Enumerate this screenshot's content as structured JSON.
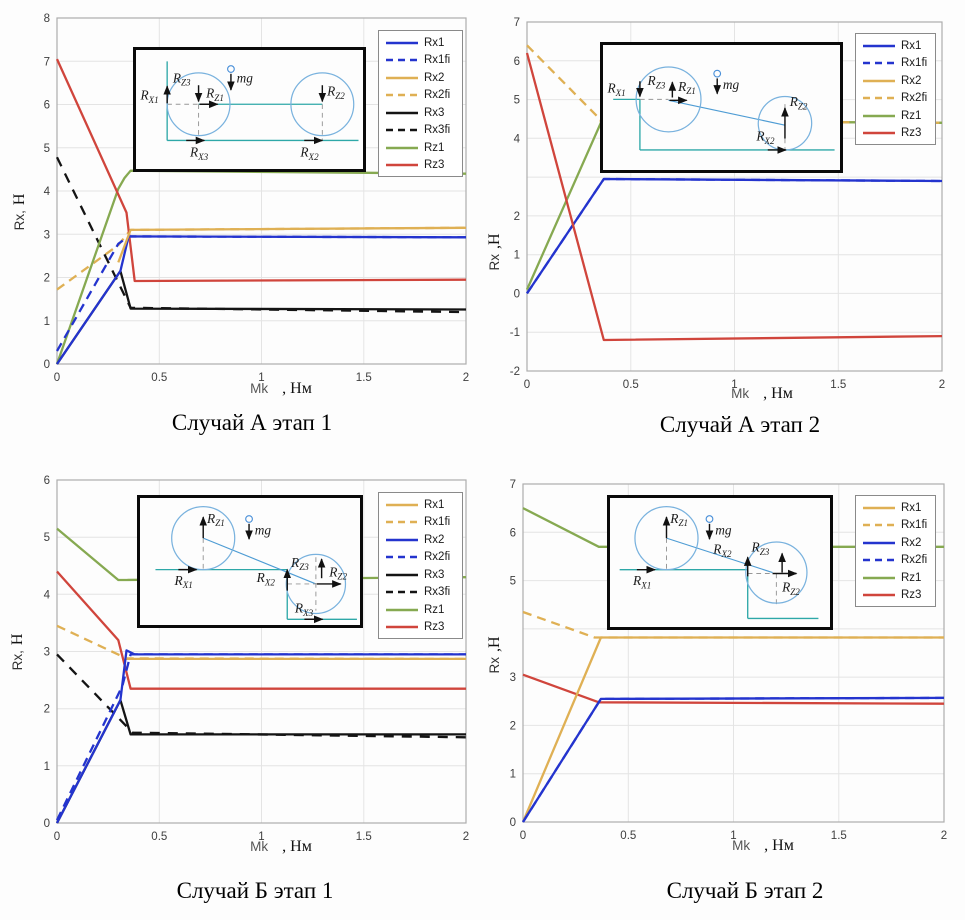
{
  "colors": {
    "blue": "#2434ce",
    "yellow": "#dfb054",
    "black": "#141414",
    "green": "#86a951",
    "red": "#d0453c"
  },
  "chart_data": [
    {
      "type": "line",
      "title": "Случай А этап 1",
      "ylabel_a": "Rx,",
      "ylabel_b": "Н",
      "xlabel_a": "Mk",
      "xlabel_b": ", Нм",
      "xlim": [
        0,
        2
      ],
      "ylim": [
        0,
        8
      ],
      "grid": true,
      "legend_position": "top-right",
      "xticks": [
        {
          "v": 0,
          "t": "0"
        },
        {
          "v": 0.5,
          "t": "0.5"
        },
        {
          "v": 1,
          "t": "1"
        },
        {
          "v": 1.5,
          "t": "1.5"
        },
        {
          "v": 2,
          "t": "2"
        }
      ],
      "yticks": [
        {
          "v": 0,
          "t": "0"
        },
        {
          "v": 1,
          "t": "1"
        },
        {
          "v": 2,
          "t": "2"
        },
        {
          "v": 3,
          "t": "3"
        },
        {
          "v": 4,
          "t": "4"
        },
        {
          "v": 5,
          "t": "5"
        },
        {
          "v": 6,
          "t": "6"
        },
        {
          "v": 7,
          "t": "7"
        },
        {
          "v": 8,
          "t": "8"
        }
      ],
      "legend": [
        {
          "label": "Rx1",
          "color": "blue",
          "dash": ""
        },
        {
          "label": "Rx1fi",
          "color": "blue",
          "dash": "7 5"
        },
        {
          "label": "Rx2",
          "color": "yellow",
          "dash": ""
        },
        {
          "label": "Rx2fi",
          "color": "yellow",
          "dash": "7 5"
        },
        {
          "label": "Rx3",
          "color": "black",
          "dash": ""
        },
        {
          "label": "Rx3fi",
          "color": "black",
          "dash": "7 5"
        },
        {
          "label": "Rz1",
          "color": "green",
          "dash": ""
        },
        {
          "label": "Rz3",
          "color": "red",
          "dash": ""
        }
      ],
      "series": [
        {
          "name": "Rx2fi",
          "color": "yellow",
          "dash": "9 6",
          "points": [
            [
              0,
              1.72
            ],
            [
              0.3,
              2.75
            ],
            [
              0.36,
              3.1
            ],
            [
              2,
              3.15
            ]
          ]
        },
        {
          "name": "Rx3fi",
          "color": "black",
          "dash": "10 8",
          "points": [
            [
              0,
              4.78
            ],
            [
              0.36,
              1.3
            ],
            [
              2,
              1.2
            ]
          ]
        },
        {
          "name": "Rz1",
          "color": "green",
          "dash": "",
          "points": [
            [
              0,
              0
            ],
            [
              0.3,
              4.05
            ],
            [
              0.33,
              4.3
            ],
            [
              0.36,
              4.47
            ],
            [
              2,
              4.4
            ]
          ]
        },
        {
          "name": "Rz3",
          "color": "red",
          "dash": "",
          "points": [
            [
              0,
              7.05
            ],
            [
              0.34,
              3.5
            ],
            [
              0.38,
              1.92
            ],
            [
              2,
              1.95
            ]
          ]
        },
        {
          "name": "Rx3",
          "color": "black",
          "dash": "",
          "points": [
            [
              0,
              0
            ],
            [
              0.31,
              2.15
            ],
            [
              0.36,
              1.28
            ],
            [
              2,
              1.26
            ]
          ]
        },
        {
          "name": "Rx1fi",
          "color": "blue",
          "dash": "9 6",
          "points": [
            [
              0,
              0.3
            ],
            [
              0.3,
              2.78
            ],
            [
              0.35,
              2.95
            ],
            [
              2,
              2.93
            ]
          ]
        },
        {
          "name": "Rx1",
          "color": "blue",
          "dash": "",
          "points": [
            [
              0,
              0
            ],
            [
              0.31,
              2.15
            ],
            [
              0.35,
              2.95
            ],
            [
              2,
              2.93
            ]
          ]
        },
        {
          "name": "Rx2",
          "color": "yellow",
          "dash": "",
          "points": [
            [
              0.3,
              2.35
            ],
            [
              0.36,
              3.1
            ],
            [
              2,
              3.15
            ]
          ]
        }
      ],
      "inset": {
        "rx1": {
          "m": "R",
          "s": "X1"
        },
        "rz3": {
          "m": "R",
          "s": "Z3"
        },
        "rz1": {
          "m": "R",
          "s": "Z1"
        },
        "mg": "mg",
        "rz2": {
          "m": "R",
          "s": "Z2"
        },
        "rx3": {
          "m": "R",
          "s": "X3"
        },
        "rx2": {
          "m": "R",
          "s": "X2"
        }
      }
    },
    {
      "type": "line",
      "title": "Случай А этап 2",
      "ylabel_a": "Rx",
      "ylabel_b": ",Н",
      "xlabel_a": "Mk",
      "xlabel_b": ", Нм",
      "xlim": [
        0,
        2
      ],
      "ylim": [
        -2,
        7
      ],
      "grid": true,
      "legend_position": "top-right",
      "xticks": [
        {
          "v": 0,
          "t": "0"
        },
        {
          "v": 0.5,
          "t": "0.5"
        },
        {
          "v": 1,
          "t": "1"
        },
        {
          "v": 1.5,
          "t": "1.5"
        },
        {
          "v": 2,
          "t": "2"
        }
      ],
      "yticks": [
        {
          "v": -2,
          "t": "-2"
        },
        {
          "v": -1,
          "t": "-1"
        },
        {
          "v": 0,
          "t": "0"
        },
        {
          "v": 1,
          "t": "1"
        },
        {
          "v": 2,
          "t": "2"
        },
        {
          "v": 3,
          "t": ""
        },
        {
          "v": 4,
          "t": "4"
        },
        {
          "v": 5,
          "t": "5"
        },
        {
          "v": 6,
          "t": "6"
        },
        {
          "v": 7,
          "t": "7"
        }
      ],
      "legend": [
        {
          "label": "Rx1",
          "color": "blue",
          "dash": ""
        },
        {
          "label": "Rx1fi",
          "color": "blue",
          "dash": "7 5"
        },
        {
          "label": "Rx2",
          "color": "yellow",
          "dash": ""
        },
        {
          "label": "Rx2fi",
          "color": "yellow",
          "dash": "7 5"
        },
        {
          "label": "Rz1",
          "color": "green",
          "dash": ""
        },
        {
          "label": "Rz3",
          "color": "red",
          "dash": ""
        }
      ],
      "series": [
        {
          "name": "Rx2",
          "color": "yellow",
          "dash": "",
          "points": [
            [
              0.35,
              4.45
            ],
            [
              2,
              4.4
            ]
          ]
        },
        {
          "name": "Rz1",
          "color": "green",
          "dash": "",
          "points": [
            [
              0,
              0.1
            ],
            [
              0.36,
              4.45
            ],
            [
              2,
              4.4
            ]
          ]
        },
        {
          "name": "Rx2fi",
          "color": "yellow",
          "dash": "9 6",
          "points": [
            [
              0,
              6.4
            ],
            [
              0.36,
              4.45
            ],
            [
              2,
              4.4
            ]
          ]
        },
        {
          "name": "Rx1",
          "color": "blue",
          "dash": "",
          "points": [
            [
              0,
              0
            ],
            [
              0.37,
              2.95
            ],
            [
              2,
              2.9
            ]
          ]
        },
        {
          "name": "Rx1fi",
          "color": "blue",
          "dash": "9 6",
          "points": [
            [
              0,
              0
            ],
            [
              0.37,
              2.95
            ],
            [
              2,
              2.9
            ]
          ]
        },
        {
          "name": "Rz3",
          "color": "red",
          "dash": "",
          "points": [
            [
              0,
              6.2
            ],
            [
              0.37,
              -1.2
            ],
            [
              2,
              -1.1
            ]
          ]
        }
      ],
      "inset": {
        "rx1": {
          "m": "R",
          "s": "X1"
        },
        "rz3": {
          "m": "R",
          "s": "Z3"
        },
        "rz1": {
          "m": "R",
          "s": "Z1"
        },
        "mg": "mg",
        "rz2": {
          "m": "R",
          "s": "Z2"
        },
        "rx2": {
          "m": "R",
          "s": "X2"
        }
      }
    },
    {
      "type": "line",
      "title": "Случай Б этап 1",
      "ylabel_a": "Rx,",
      "ylabel_b": "Н",
      "xlabel_a": "Mk",
      "xlabel_b": ", Нм",
      "xlim": [
        0,
        2
      ],
      "ylim": [
        0,
        6
      ],
      "grid": true,
      "legend_position": "top-right",
      "xticks": [
        {
          "v": 0,
          "t": "0"
        },
        {
          "v": 0.5,
          "t": "0.5"
        },
        {
          "v": 1,
          "t": "1"
        },
        {
          "v": 1.5,
          "t": "1.5"
        },
        {
          "v": 2,
          "t": "2"
        }
      ],
      "yticks": [
        {
          "v": 0,
          "t": "0"
        },
        {
          "v": 1,
          "t": "1"
        },
        {
          "v": 2,
          "t": "2"
        },
        {
          "v": 3,
          "t": "3"
        },
        {
          "v": 4,
          "t": "4"
        },
        {
          "v": 5,
          "t": "5"
        },
        {
          "v": 6,
          "t": "6"
        }
      ],
      "legend": [
        {
          "label": "Rx1",
          "color": "yellow",
          "dash": ""
        },
        {
          "label": "Rx1fi",
          "color": "yellow",
          "dash": "7 5"
        },
        {
          "label": "Rx2",
          "color": "blue",
          "dash": ""
        },
        {
          "label": "Rx2fi",
          "color": "blue",
          "dash": "7 5"
        },
        {
          "label": "Rx3",
          "color": "black",
          "dash": ""
        },
        {
          "label": "Rx3fi",
          "color": "black",
          "dash": "7 5"
        },
        {
          "label": "Rz1",
          "color": "green",
          "dash": ""
        },
        {
          "label": "Rz3",
          "color": "red",
          "dash": ""
        }
      ],
      "series": [
        {
          "name": "Rx1fi",
          "color": "yellow",
          "dash": "9 6",
          "points": [
            [
              0,
              3.45
            ],
            [
              0.34,
              2.88
            ],
            [
              2,
              2.87
            ]
          ]
        },
        {
          "name": "Rx3fi",
          "color": "black",
          "dash": "10 8",
          "points": [
            [
              0,
              2.95
            ],
            [
              0.37,
              1.58
            ],
            [
              2,
              1.5
            ]
          ]
        },
        {
          "name": "Rz1",
          "color": "green",
          "dash": "",
          "points": [
            [
              0,
              5.15
            ],
            [
              0.3,
              4.25
            ],
            [
              2,
              4.3
            ]
          ]
        },
        {
          "name": "Rx3",
          "color": "black",
          "dash": "",
          "points": [
            [
              0,
              0
            ],
            [
              0.31,
              2.15
            ],
            [
              0.36,
              1.55
            ],
            [
              2,
              1.55
            ]
          ]
        },
        {
          "name": "Rz3",
          "color": "red",
          "dash": "",
          "points": [
            [
              0,
              4.4
            ],
            [
              0.3,
              3.2
            ],
            [
              0.36,
              2.35
            ],
            [
              2,
              2.35
            ]
          ]
        },
        {
          "name": "Rx2fi",
          "color": "blue",
          "dash": "9 6",
          "points": [
            [
              0,
              0.05
            ],
            [
              0.32,
              2.4
            ],
            [
              0.36,
              2.95
            ],
            [
              2,
              2.95
            ]
          ]
        },
        {
          "name": "Rx2",
          "color": "blue",
          "dash": "",
          "points": [
            [
              0,
              0
            ],
            [
              0.31,
              2.15
            ],
            [
              0.34,
              3.02
            ],
            [
              0.38,
              2.95
            ],
            [
              2,
              2.95
            ]
          ]
        },
        {
          "name": "Rx1",
          "color": "yellow",
          "dash": "",
          "points": [
            [
              0.34,
              2.87
            ],
            [
              2,
              2.87
            ]
          ]
        }
      ],
      "inset": {
        "rz1": {
          "m": "R",
          "s": "Z1"
        },
        "mg": "mg",
        "rx1": {
          "m": "R",
          "s": "X1"
        },
        "rx2": {
          "m": "R",
          "s": "X2"
        },
        "rz3": {
          "m": "R",
          "s": "Z3"
        },
        "rz2": {
          "m": "R",
          "s": "Z2"
        },
        "rx3": {
          "m": "R",
          "s": "X3"
        }
      }
    },
    {
      "type": "line",
      "title": "Случай Б этап 2",
      "ylabel_a": "Rx",
      "ylabel_b": ",Н",
      "xlabel_a": "Mk",
      "xlabel_b": ", Нм",
      "xlim": [
        0,
        2
      ],
      "ylim": [
        0,
        7
      ],
      "grid": true,
      "legend_position": "top-right",
      "xticks": [
        {
          "v": 0,
          "t": "0"
        },
        {
          "v": 0.5,
          "t": "0.5"
        },
        {
          "v": 1,
          "t": "1"
        },
        {
          "v": 1.5,
          "t": "1.5"
        },
        {
          "v": 2,
          "t": "2"
        }
      ],
      "yticks": [
        {
          "v": 0,
          "t": "0"
        },
        {
          "v": 1,
          "t": "1"
        },
        {
          "v": 2,
          "t": "2"
        },
        {
          "v": 3,
          "t": "3"
        },
        {
          "v": 4,
          "t": ""
        },
        {
          "v": 5,
          "t": "5"
        },
        {
          "v": 6,
          "t": "6"
        },
        {
          "v": 7,
          "t": "7"
        }
      ],
      "legend": [
        {
          "label": "Rx1",
          "color": "yellow",
          "dash": ""
        },
        {
          "label": "Rx1fi",
          "color": "yellow",
          "dash": "7 5"
        },
        {
          "label": "Rx2",
          "color": "blue",
          "dash": ""
        },
        {
          "label": "Rx2fi",
          "color": "blue",
          "dash": "7 5"
        },
        {
          "label": "Rz1",
          "color": "green",
          "dash": ""
        },
        {
          "label": "Rz3",
          "color": "red",
          "dash": ""
        }
      ],
      "series": [
        {
          "name": "Rx1fi",
          "color": "yellow",
          "dash": "9 6",
          "points": [
            [
              0,
              4.35
            ],
            [
              0.34,
              3.82
            ],
            [
              2,
              3.82
            ]
          ]
        },
        {
          "name": "Rz1",
          "color": "green",
          "dash": "",
          "points": [
            [
              0,
              6.5
            ],
            [
              0.36,
              5.7
            ],
            [
              2,
              5.7
            ]
          ]
        },
        {
          "name": "Rz3",
          "color": "red",
          "dash": "",
          "points": [
            [
              0,
              3.05
            ],
            [
              0.36,
              2.48
            ],
            [
              2,
              2.45
            ]
          ]
        },
        {
          "name": "Rx1",
          "color": "yellow",
          "dash": "",
          "points": [
            [
              0,
              0
            ],
            [
              0.37,
              3.82
            ],
            [
              2,
              3.82
            ]
          ]
        },
        {
          "name": "Rx2",
          "color": "blue",
          "dash": "",
          "points": [
            [
              0,
              0
            ],
            [
              0.37,
              2.55
            ],
            [
              2,
              2.57
            ]
          ]
        },
        {
          "name": "Rx2fi",
          "color": "blue",
          "dash": "9 6",
          "points": [
            [
              0,
              0
            ],
            [
              0.37,
              2.55
            ],
            [
              2,
              2.57
            ]
          ]
        }
      ],
      "inset": {
        "rz1": {
          "m": "R",
          "s": "Z1"
        },
        "mg": "mg",
        "rx1": {
          "m": "R",
          "s": "X1"
        },
        "rx2": {
          "m": "R",
          "s": "X2"
        },
        "rz3": {
          "m": "R",
          "s": "Z3"
        },
        "rz2": {
          "m": "R",
          "s": "Z2"
        }
      }
    }
  ]
}
